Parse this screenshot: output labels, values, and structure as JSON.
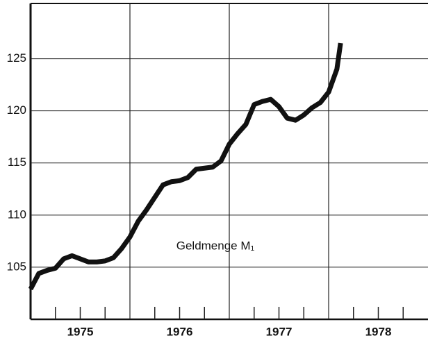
{
  "chart_data": {
    "type": "line",
    "annotation": "Geldmenge M₁",
    "x": [
      1975,
      1975.083,
      1975.167,
      1975.25,
      1975.333,
      1975.417,
      1975.5,
      1975.583,
      1975.667,
      1975.75,
      1975.833,
      1975.917,
      1976,
      1976.083,
      1976.167,
      1976.25,
      1976.333,
      1976.417,
      1976.5,
      1976.583,
      1976.667,
      1976.75,
      1976.833,
      1976.917,
      1977,
      1977.083,
      1977.167,
      1977.25,
      1977.333,
      1977.417,
      1977.5,
      1977.583,
      1977.667,
      1977.75,
      1977.833,
      1977.917,
      1978,
      1978.083,
      1978.12
    ],
    "series": [
      {
        "name": "Geldmenge M₁",
        "color": "#111111",
        "values": [
          102.9,
          104.4,
          104.7,
          104.9,
          105.8,
          106.1,
          105.8,
          105.5,
          105.5,
          105.6,
          105.9,
          106.8,
          107.9,
          109.4,
          110.5,
          111.7,
          112.9,
          113.2,
          113.3,
          113.6,
          114.4,
          114.5,
          114.6,
          115.2,
          116.8,
          117.8,
          118.7,
          120.6,
          120.9,
          121.1,
          120.4,
          119.3,
          119.1,
          119.6,
          120.3,
          120.8,
          121.8,
          124.0,
          126.5
        ]
      }
    ],
    "xlim": [
      1975,
      1979
    ],
    "xticks": [
      {
        "value": 1975.5,
        "label": "1975"
      },
      {
        "value": 1976.5,
        "label": "1976"
      },
      {
        "value": 1977.5,
        "label": "1977"
      },
      {
        "value": 1978.5,
        "label": "1978"
      }
    ],
    "xgrid": [
      1976,
      1977,
      1978
    ],
    "minor_xticks": [
      1975.25,
      1975.5,
      1975.75,
      1976.25,
      1976.5,
      1976.75,
      1977.25,
      1977.5,
      1977.75,
      1978.25,
      1978.5,
      1978.75
    ],
    "ylim": [
      100,
      130.3
    ],
    "yticks": [
      105,
      110,
      115,
      120,
      125
    ],
    "grid": true
  }
}
